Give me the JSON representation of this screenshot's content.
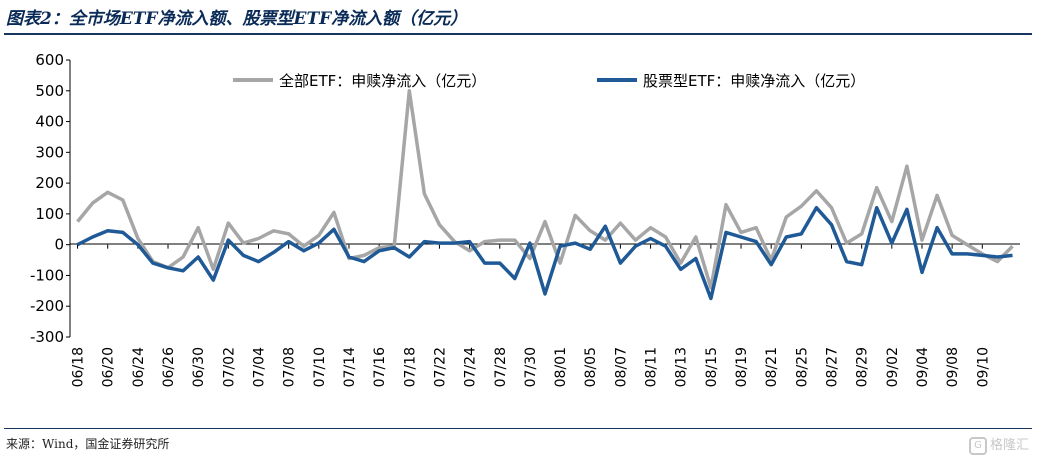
{
  "header": {
    "title": "图表2：全市场ETF净流入额、股票型ETF净流入额（亿元）"
  },
  "footer": {
    "source": "来源：Wind，国金证券研究所",
    "watermark": "格隆汇",
    "watermark_icon": "G"
  },
  "colors": {
    "series_all": "#a6a6a6",
    "series_stock": "#1f5a96",
    "axis": "#000000"
  },
  "chart_data": {
    "type": "line",
    "title": "",
    "xlabel": "",
    "ylabel": "",
    "ylim": [
      -300,
      600
    ],
    "yticks": [
      -300,
      -200,
      -100,
      0,
      100,
      200,
      300,
      400,
      500,
      600
    ],
    "grid": false,
    "legend": "top",
    "x_tick_labels": [
      "06/18",
      "06/20",
      "06/24",
      "06/26",
      "06/30",
      "07/02",
      "07/04",
      "07/08",
      "07/10",
      "07/14",
      "07/16",
      "07/18",
      "07/22",
      "07/24",
      "07/28",
      "07/30",
      "08/01",
      "08/05",
      "08/07",
      "08/11",
      "08/13",
      "08/15",
      "08/19",
      "08/21",
      "08/25",
      "08/27",
      "08/29",
      "09/02",
      "09/04",
      "09/08",
      "09/10"
    ],
    "series": [
      {
        "name": "全部ETF：申赎净流入（亿元）",
        "values": [
          75,
          135,
          170,
          145,
          20,
          -55,
          -75,
          -40,
          55,
          -80,
          70,
          5,
          20,
          45,
          35,
          -5,
          30,
          105,
          -45,
          -35,
          -10,
          -5,
          500,
          165,
          65,
          10,
          -20,
          10,
          15,
          15,
          -45,
          75,
          -60,
          95,
          45,
          15,
          70,
          15,
          55,
          25,
          -60,
          25,
          -140,
          130,
          40,
          55,
          -50,
          90,
          125,
          175,
          120,
          5,
          35,
          185,
          75,
          255,
          15,
          160,
          30,
          0,
          -30,
          -55,
          -5
        ],
        "color_key": "series_all"
      },
      {
        "name": "股票型ETF：申赎净流入（亿元）",
        "values": [
          0,
          25,
          45,
          40,
          0,
          -60,
          -75,
          -85,
          -40,
          -115,
          15,
          -35,
          -55,
          -25,
          10,
          -20,
          5,
          50,
          -40,
          -55,
          -20,
          -10,
          -40,
          10,
          5,
          5,
          10,
          -60,
          -60,
          -110,
          5,
          -160,
          -5,
          5,
          -15,
          60,
          -60,
          -5,
          20,
          -5,
          -80,
          -45,
          -175,
          40,
          25,
          10,
          -65,
          25,
          35,
          120,
          65,
          -55,
          -65,
          120,
          5,
          115,
          -90,
          55,
          -30,
          -30,
          -35,
          -40,
          -35
        ],
        "color_key": "series_stock"
      }
    ]
  }
}
